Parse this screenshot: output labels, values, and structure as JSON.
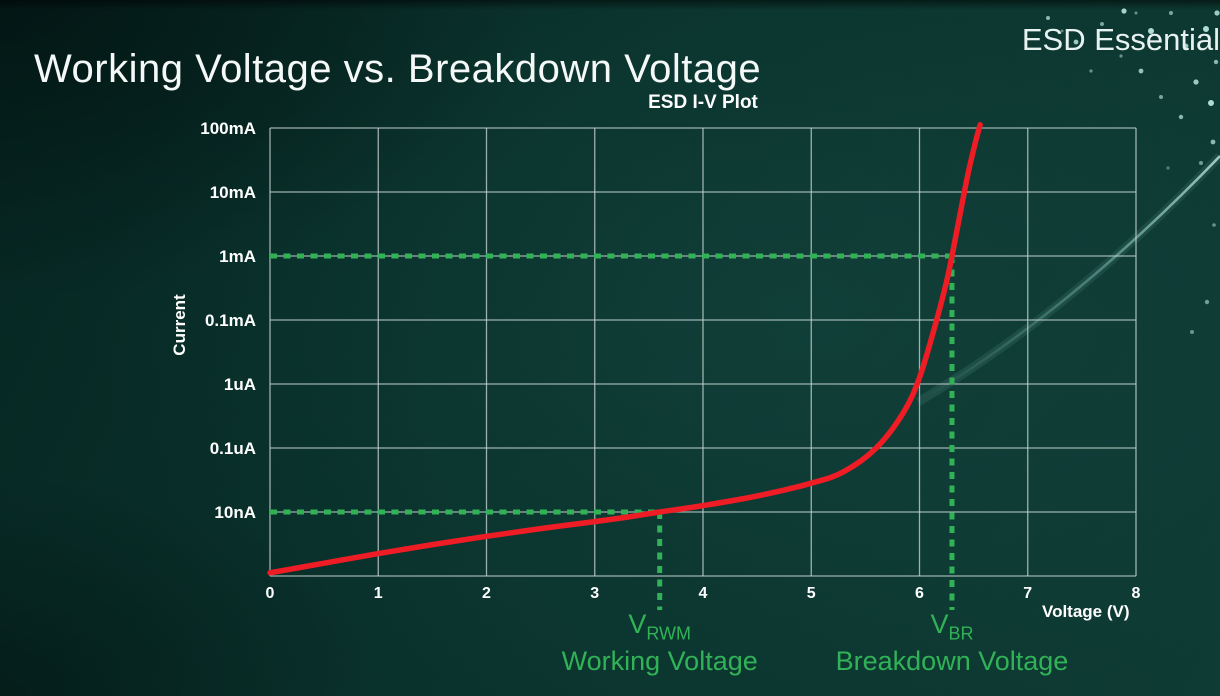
{
  "header": {
    "title": "Working Voltage vs. Breakdown Voltage",
    "brand": "ESD Essential"
  },
  "chart": {
    "title": "ESD I-V Plot",
    "y_axis_title": "Current",
    "x_axis_title": "Voltage (V)"
  },
  "chart_data": {
    "type": "line",
    "title": "ESD I-V Plot",
    "xlabel": "Voltage (V)",
    "ylabel": "Current",
    "x_range": [
      0,
      8
    ],
    "x_ticks": [
      "0",
      "1",
      "2",
      "3",
      "4",
      "5",
      "6",
      "7",
      "8"
    ],
    "y_scale": "logarithmic (stylized, equally spaced labeled gridlines)",
    "y_gridline_count": 7,
    "y_ticks": [
      {
        "label": "100mA",
        "level": 7
      },
      {
        "label": "10mA",
        "level": 6
      },
      {
        "label": "1mA",
        "level": 5
      },
      {
        "label": "0.1mA",
        "level": 4
      },
      {
        "label": "1uA",
        "level": 3
      },
      {
        "label": "0.1uA",
        "level": 2
      },
      {
        "label": "10nA",
        "level": 1
      }
    ],
    "grid": true,
    "series": [
      {
        "name": "ESD device I-V curve",
        "color": "#ee1c25",
        "note": "points are [voltage_V, y_level] where y_level is gridline index above bottom axis (1=10nA, 5=1mA, 7=100mA)",
        "points_v_level": [
          [
            0,
            0.05
          ],
          [
            0.5,
            0.2
          ],
          [
            1,
            0.35
          ],
          [
            1.5,
            0.49
          ],
          [
            2,
            0.62
          ],
          [
            2.5,
            0.74
          ],
          [
            3,
            0.85
          ],
          [
            3.3,
            0.92
          ],
          [
            3.6,
            1.0
          ],
          [
            4,
            1.1
          ],
          [
            4.5,
            1.25
          ],
          [
            5,
            1.45
          ],
          [
            5.3,
            1.63
          ],
          [
            5.6,
            2.0
          ],
          [
            5.85,
            2.55
          ],
          [
            6.0,
            3.1
          ],
          [
            6.15,
            3.95
          ],
          [
            6.25,
            4.6
          ],
          [
            6.3,
            5.0
          ],
          [
            6.38,
            5.7
          ],
          [
            6.45,
            6.3
          ],
          [
            6.52,
            6.8
          ],
          [
            6.56,
            7.05
          ]
        ],
        "key_readings": [
          {
            "voltage_V": 3.6,
            "current": "10nA"
          },
          {
            "voltage_V": 6.3,
            "current": "1mA"
          }
        ]
      }
    ],
    "annotations": [
      {
        "id": "working",
        "v": 3.6,
        "level": 1,
        "label_main": "V",
        "label_sub": "RWM",
        "caption": "Working Voltage"
      },
      {
        "id": "breakdown",
        "v": 6.3,
        "level": 5,
        "label_main": "V",
        "label_sub": "BR",
        "caption": "Breakdown Voltage"
      }
    ],
    "colors": {
      "curve_red": "#ee1c25",
      "annotation_green": "#31b257",
      "grid_gray": "#c3cfcd",
      "text_white": "#ffffff",
      "background_teal": "#0a322c"
    },
    "legend": "none"
  }
}
